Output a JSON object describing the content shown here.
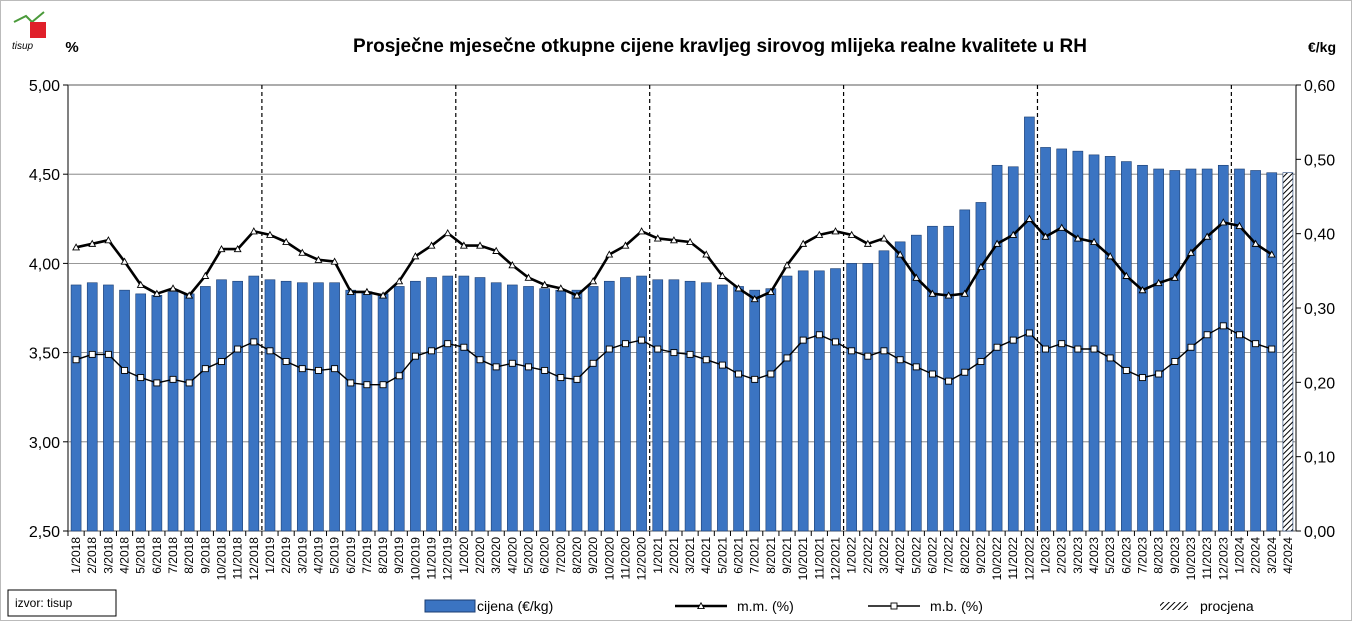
{
  "chart_data": {
    "type": "bar",
    "title": "Prosječne mjesečne otkupne cijene kravljeg sirovog mlijeka realne kvalitete u RH",
    "logo": "tisup",
    "y_unit": "%",
    "y2_unit": "€/kg",
    "source": "izvor: tisup",
    "categories": [
      "1/2018",
      "2/2018",
      "3/2018",
      "4/2018",
      "5/2018",
      "6/2018",
      "7/2018",
      "8/2018",
      "9/2018",
      "10/2018",
      "11/2018",
      "12/2018",
      "1/2019",
      "2/2019",
      "3/2019",
      "4/2019",
      "5/2019",
      "6/2019",
      "7/2019",
      "8/2019",
      "9/2019",
      "10/2019",
      "11/2019",
      "12/2019",
      "1/2020",
      "2/2020",
      "3/2020",
      "4/2020",
      "5/2020",
      "6/2020",
      "7/2020",
      "8/2020",
      "9/2020",
      "10/2020",
      "11/2020",
      "12/2020",
      "1/2021",
      "2/2021",
      "3/2021",
      "4/2021",
      "5/2021",
      "6/2021",
      "7/2021",
      "8/2021",
      "9/2021",
      "10/2021",
      "11/2021",
      "12/2021",
      "1/2022",
      "2/2022",
      "3/2022",
      "4/2022",
      "5/2022",
      "6/2022",
      "7/2022",
      "8/2022",
      "9/2022",
      "10/2022",
      "11/2022",
      "12/2022",
      "1/2023",
      "2/2023",
      "3/2023",
      "4/2023",
      "5/2023",
      "6/2023",
      "7/2023",
      "8/2023",
      "9/2023",
      "10/2023",
      "11/2023",
      "12/2023",
      "1/2024",
      "2/2024",
      "3/2024",
      "4/2024"
    ],
    "series": [
      {
        "name": "cijena (€/kg)",
        "kind": "bar",
        "axis": "y2",
        "color": "#3b74c2",
        "values": [
          0.331,
          0.334,
          0.331,
          0.324,
          0.319,
          0.317,
          0.322,
          0.319,
          0.329,
          0.338,
          0.336,
          0.343,
          0.338,
          0.336,
          0.334,
          0.334,
          0.334,
          0.324,
          0.322,
          0.319,
          0.329,
          0.336,
          0.341,
          0.343,
          0.343,
          0.341,
          0.334,
          0.331,
          0.329,
          0.326,
          0.324,
          0.324,
          0.329,
          0.336,
          0.341,
          0.343,
          0.338,
          0.338,
          0.336,
          0.334,
          0.331,
          0.329,
          0.324,
          0.326,
          0.343,
          0.35,
          0.35,
          0.353,
          0.36,
          0.36,
          0.377,
          0.389,
          0.398,
          0.41,
          0.41,
          0.432,
          0.442,
          0.492,
          0.49,
          0.557,
          0.516,
          0.514,
          0.511,
          0.506,
          0.504,
          0.497,
          0.492,
          0.487,
          0.485,
          0.487,
          0.487,
          0.492,
          0.487,
          0.485,
          0.482,
          null
        ]
      },
      {
        "name": "procjena",
        "kind": "hatch",
        "axis": "y2",
        "color": "#000000",
        "values": [
          null,
          null,
          null,
          null,
          null,
          null,
          null,
          null,
          null,
          null,
          null,
          null,
          null,
          null,
          null,
          null,
          null,
          null,
          null,
          null,
          null,
          null,
          null,
          null,
          null,
          null,
          null,
          null,
          null,
          null,
          null,
          null,
          null,
          null,
          null,
          null,
          null,
          null,
          null,
          null,
          null,
          null,
          null,
          null,
          null,
          null,
          null,
          null,
          null,
          null,
          null,
          null,
          null,
          null,
          null,
          null,
          null,
          null,
          null,
          null,
          null,
          null,
          null,
          null,
          null,
          null,
          null,
          null,
          null,
          null,
          null,
          null,
          null,
          null,
          null,
          0.482
        ]
      },
      {
        "name": "m.m. (%)",
        "kind": "line",
        "marker": "triangle",
        "color": "#000000",
        "values": [
          4.09,
          4.11,
          4.13,
          4.01,
          3.88,
          3.83,
          3.86,
          3.82,
          3.93,
          4.08,
          4.08,
          4.18,
          4.16,
          4.12,
          4.06,
          4.02,
          4.01,
          3.84,
          3.84,
          3.82,
          3.9,
          4.04,
          4.1,
          4.17,
          4.1,
          4.1,
          4.07,
          3.99,
          3.92,
          3.88,
          3.86,
          3.82,
          3.9,
          4.05,
          4.1,
          4.18,
          4.14,
          4.13,
          4.12,
          4.05,
          3.93,
          3.86,
          3.8,
          3.84,
          3.99,
          4.11,
          4.16,
          4.18,
          4.16,
          4.11,
          4.14,
          4.05,
          3.92,
          3.83,
          3.82,
          3.83,
          3.98,
          4.11,
          4.16,
          4.25,
          4.15,
          4.2,
          4.14,
          4.12,
          4.04,
          3.93,
          3.85,
          3.89,
          3.92,
          4.06,
          4.15,
          4.23,
          4.21,
          4.11,
          4.05,
          null
        ]
      },
      {
        "name": "m.b. (%)",
        "kind": "line",
        "marker": "square",
        "color": "#000000",
        "values": [
          3.46,
          3.49,
          3.49,
          3.4,
          3.36,
          3.33,
          3.35,
          3.33,
          3.41,
          3.45,
          3.52,
          3.56,
          3.51,
          3.45,
          3.41,
          3.4,
          3.41,
          3.33,
          3.32,
          3.32,
          3.37,
          3.48,
          3.51,
          3.55,
          3.53,
          3.46,
          3.42,
          3.44,
          3.42,
          3.4,
          3.36,
          3.35,
          3.44,
          3.52,
          3.55,
          3.57,
          3.52,
          3.5,
          3.49,
          3.46,
          3.43,
          3.38,
          3.35,
          3.38,
          3.47,
          3.57,
          3.6,
          3.56,
          3.51,
          3.48,
          3.51,
          3.46,
          3.42,
          3.38,
          3.34,
          3.39,
          3.45,
          3.53,
          3.57,
          3.61,
          3.52,
          3.55,
          3.52,
          3.52,
          3.47,
          3.4,
          3.36,
          3.38,
          3.45,
          3.53,
          3.6,
          3.65,
          3.6,
          3.55,
          3.52,
          null
        ]
      }
    ],
    "ylim": [
      2.5,
      5.0
    ],
    "yticks": [
      {
        "value": 2.5,
        "label": "2,50"
      },
      {
        "value": 3.0,
        "label": "3,00"
      },
      {
        "value": 3.5,
        "label": "3,50"
      },
      {
        "value": 4.0,
        "label": "4,00"
      },
      {
        "value": 4.5,
        "label": "4,50"
      },
      {
        "value": 5.0,
        "label": "5,00"
      }
    ],
    "y2lim": [
      0,
      0.6
    ],
    "y2ticks": [
      {
        "value": 0,
        "label": "0,00"
      },
      {
        "value": 0.1,
        "label": "0,10"
      },
      {
        "value": 0.2,
        "label": "0,20"
      },
      {
        "value": 0.3,
        "label": "0,30"
      },
      {
        "value": 0.4,
        "label": "0,40"
      },
      {
        "value": 0.5,
        "label": "0,50"
      },
      {
        "value": 0.6,
        "label": "0,60"
      }
    ],
    "grid": true
  }
}
